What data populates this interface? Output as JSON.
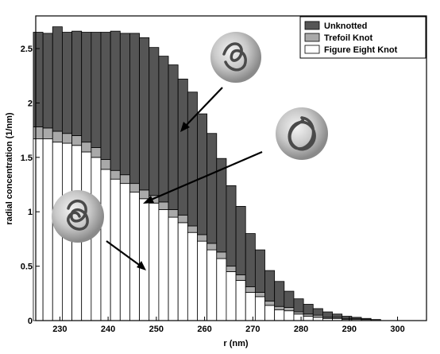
{
  "chart_data": {
    "type": "bar",
    "stacked": true,
    "xlabel": "r (nm)",
    "ylabel": "radial concentration (1/nm)",
    "xlim": [
      225,
      306
    ],
    "ylim": [
      0,
      2.8
    ],
    "xticks": [
      230,
      240,
      250,
      260,
      270,
      280,
      290,
      300
    ],
    "yticks": [
      0,
      0.5,
      1,
      1.5,
      2,
      2.5
    ],
    "grid": false,
    "legend_position": "top-right",
    "x": [
      225.5,
      227.5,
      229.5,
      231.5,
      233.5,
      235.5,
      237.5,
      239.5,
      241.5,
      243.5,
      245.5,
      247.5,
      249.5,
      251.5,
      253.5,
      255.5,
      257.5,
      259.5,
      261.5,
      263.5,
      265.5,
      267.5,
      269.5,
      271.5,
      273.5,
      275.5,
      277.5,
      279.5,
      281.5,
      283.5,
      285.5,
      287.5,
      289.5,
      291.5,
      293.5,
      295.5,
      297.5,
      299.5,
      301.5,
      303.5
    ],
    "series": [
      {
        "name": "Figure Eight Knot",
        "color": "#ffffff",
        "values": [
          1.67,
          1.67,
          1.64,
          1.63,
          1.61,
          1.55,
          1.5,
          1.39,
          1.3,
          1.26,
          1.18,
          1.12,
          1.08,
          1.02,
          0.95,
          0.9,
          0.81,
          0.73,
          0.65,
          0.57,
          0.45,
          0.37,
          0.26,
          0.22,
          0.14,
          0.1,
          0.09,
          0.06,
          0.04,
          0.03,
          0.02,
          0.02,
          0.01,
          0.01,
          0.0,
          0.0,
          0.0,
          0.0,
          0.0,
          0.0
        ]
      },
      {
        "name": "Trefoil Knot",
        "color": "#a9a9a9",
        "values": [
          0.11,
          0.1,
          0.1,
          0.09,
          0.09,
          0.09,
          0.09,
          0.09,
          0.08,
          0.08,
          0.08,
          0.08,
          0.07,
          0.07,
          0.07,
          0.07,
          0.06,
          0.06,
          0.06,
          0.06,
          0.05,
          0.05,
          0.05,
          0.04,
          0.04,
          0.03,
          0.03,
          0.02,
          0.02,
          0.02,
          0.01,
          0.01,
          0.01,
          0.01,
          0.01,
          0.0,
          0.0,
          0.0,
          0.0,
          0.0
        ]
      },
      {
        "name": "Unknotted",
        "color": "#555555",
        "values": [
          0.87,
          0.87,
          0.96,
          0.93,
          0.96,
          1.01,
          1.06,
          1.17,
          1.28,
          1.3,
          1.38,
          1.4,
          1.36,
          1.34,
          1.33,
          1.25,
          1.23,
          1.11,
          1.01,
          0.86,
          0.74,
          0.63,
          0.49,
          0.39,
          0.28,
          0.23,
          0.15,
          0.12,
          0.09,
          0.06,
          0.05,
          0.03,
          0.02,
          0.01,
          0.01,
          0.01,
          0.0,
          0.0,
          0.0,
          0.0
        ]
      }
    ]
  }
}
